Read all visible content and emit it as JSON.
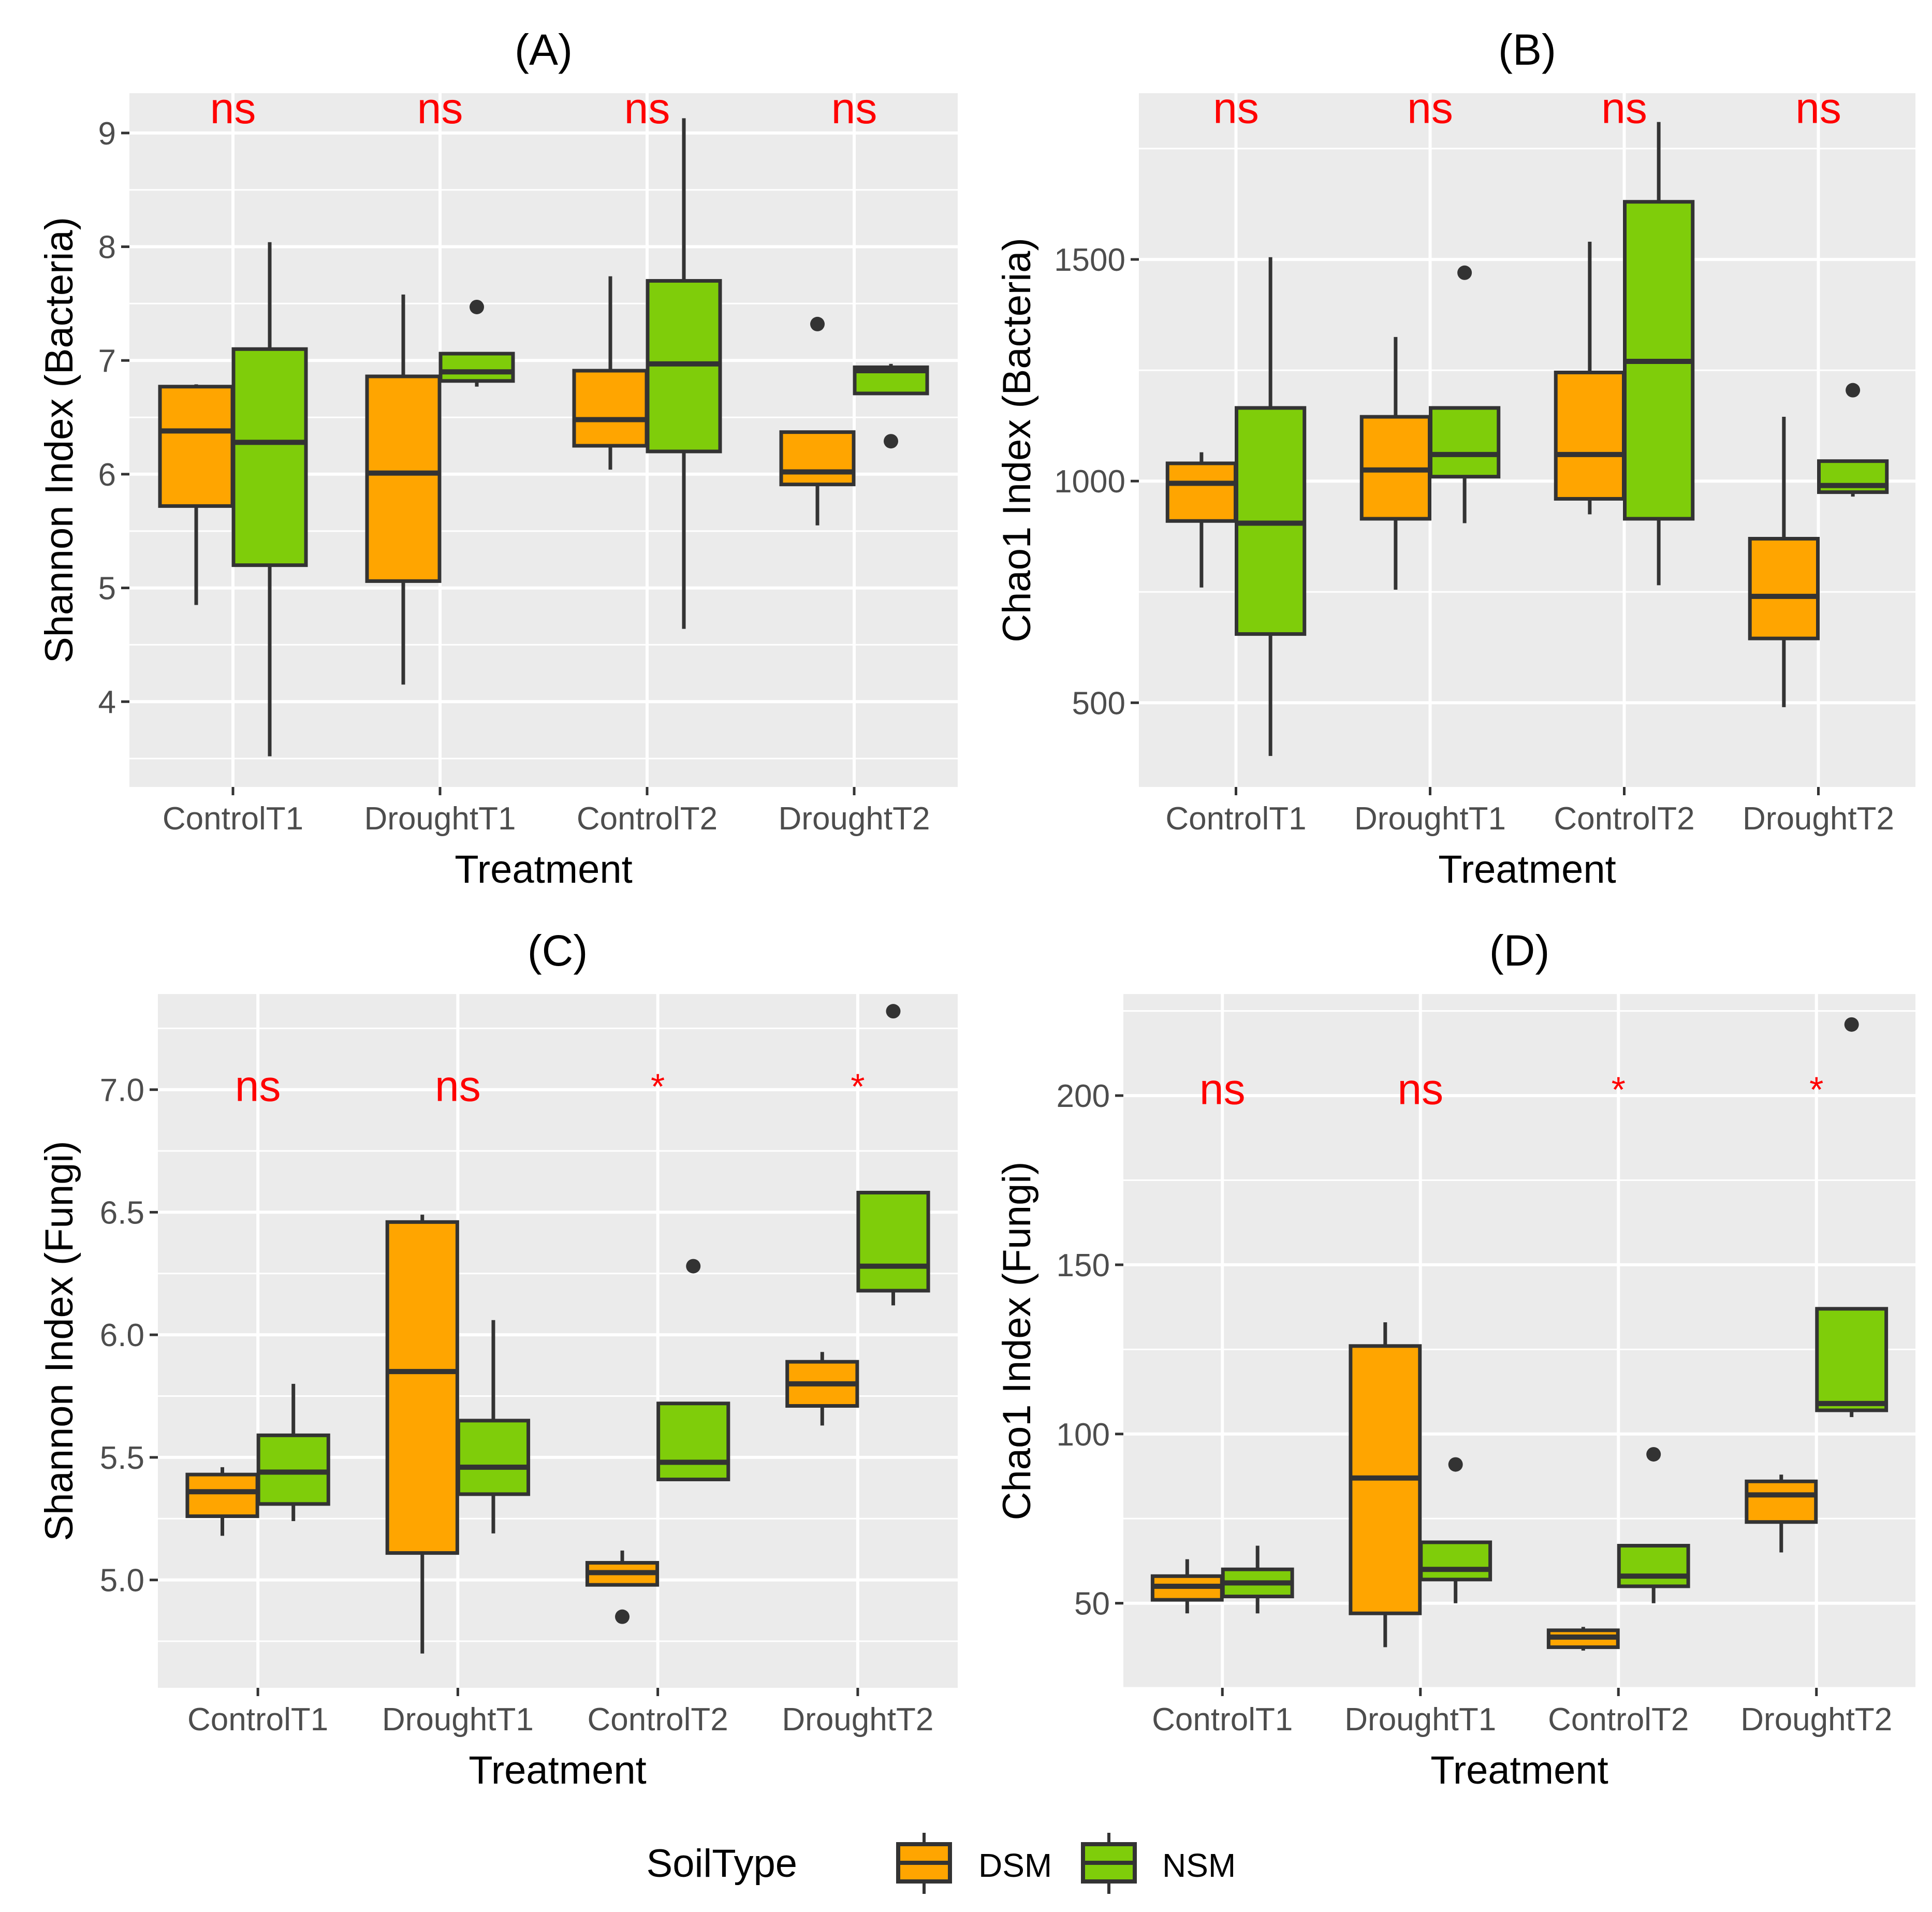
{
  "figure": {
    "legend": {
      "title": "SoilType",
      "entries": [
        {
          "label": "DSM",
          "color": "#FFA500"
        },
        {
          "label": "NSM",
          "color": "#7FCD0A"
        }
      ]
    },
    "style": {
      "panel_bg": "#EBEBEB",
      "grid": "#FFFFFF",
      "box_border": "#333333",
      "sig_color": "#FF0000",
      "axis_text": "#4D4D4D",
      "title_text": "#000000"
    }
  },
  "chart_data": [
    {
      "type": "box",
      "panel": "A",
      "title": "(A)",
      "xlabel": "Treatment",
      "ylabel": "Shannon Index (Bacteria)",
      "categories": [
        "ControlT1",
        "DroughtT1",
        "ControlT2",
        "DroughtT2"
      ],
      "ylim": [
        3.25,
        9.35
      ],
      "yticks": [
        4,
        5,
        6,
        7,
        8,
        9
      ],
      "ytick_labels": [
        "4",
        "5",
        "6",
        "7",
        "8",
        "9"
      ],
      "significance": [
        "ns",
        "ns",
        "ns",
        "ns"
      ],
      "sig_y": 9.25,
      "series": [
        {
          "name": "DSM",
          "boxes": [
            {
              "min": 4.85,
              "q1": 5.72,
              "median": 6.38,
              "q3": 6.77,
              "max": 6.79,
              "outliers": []
            },
            {
              "min": 4.15,
              "q1": 5.06,
              "median": 6.01,
              "q3": 6.86,
              "max": 7.58,
              "outliers": []
            },
            {
              "min": 6.04,
              "q1": 6.25,
              "median": 6.48,
              "q3": 6.91,
              "max": 7.74,
              "outliers": []
            },
            {
              "min": 5.55,
              "q1": 5.91,
              "median": 6.02,
              "q3": 6.37,
              "max": 6.37,
              "outliers": [
                7.32
              ]
            }
          ]
        },
        {
          "name": "NSM",
          "boxes": [
            {
              "min": 3.52,
              "q1": 5.2,
              "median": 6.28,
              "q3": 7.1,
              "max": 8.04,
              "outliers": []
            },
            {
              "min": 6.77,
              "q1": 6.82,
              "median": 6.9,
              "q3": 7.06,
              "max": 7.06,
              "outliers": [
                7.47
              ]
            },
            {
              "min": 4.64,
              "q1": 6.2,
              "median": 6.97,
              "q3": 7.7,
              "max": 9.13,
              "outliers": []
            },
            {
              "min": 6.71,
              "q1": 6.71,
              "median": 6.91,
              "q3": 6.94,
              "max": 6.97,
              "outliers": [
                6.29
              ]
            }
          ]
        }
      ]
    },
    {
      "type": "box",
      "panel": "B",
      "title": "(B)",
      "xlabel": "Treatment",
      "ylabel": "Chao1 Index (Bacteria)",
      "categories": [
        "ControlT1",
        "DroughtT1",
        "ControlT2",
        "DroughtT2"
      ],
      "ylim": [
        310,
        1875
      ],
      "yticks": [
        500,
        1000,
        1500
      ],
      "ytick_labels": [
        "500",
        "1000",
        "1500"
      ],
      "significance": [
        "ns",
        "ns",
        "ns",
        "ns"
      ],
      "sig_y": 1850,
      "series": [
        {
          "name": "DSM",
          "boxes": [
            {
              "min": 760,
              "q1": 910,
              "median": 995,
              "q3": 1040,
              "max": 1065,
              "outliers": []
            },
            {
              "min": 755,
              "q1": 915,
              "median": 1025,
              "q3": 1145,
              "max": 1325,
              "outliers": []
            },
            {
              "min": 925,
              "q1": 960,
              "median": 1060,
              "q3": 1245,
              "max": 1540,
              "outliers": []
            },
            {
              "min": 490,
              "q1": 645,
              "median": 740,
              "q3": 870,
              "max": 1145,
              "outliers": []
            }
          ]
        },
        {
          "name": "NSM",
          "boxes": [
            {
              "min": 380,
              "q1": 655,
              "median": 905,
              "q3": 1165,
              "max": 1505,
              "outliers": []
            },
            {
              "min": 905,
              "q1": 1010,
              "median": 1060,
              "q3": 1165,
              "max": 1165,
              "outliers": [
                1470
              ]
            },
            {
              "min": 765,
              "q1": 915,
              "median": 1270,
              "q3": 1630,
              "max": 1810,
              "outliers": []
            },
            {
              "min": 965,
              "q1": 975,
              "median": 990,
              "q3": 1045,
              "max": 1045,
              "outliers": [
                1205
              ]
            }
          ]
        }
      ]
    },
    {
      "type": "box",
      "panel": "C",
      "title": "(C)",
      "xlabel": "Treatment",
      "ylabel": "Shannon Index (Fungi)",
      "categories": [
        "ControlT1",
        "DroughtT1",
        "ControlT2",
        "DroughtT2"
      ],
      "ylim": [
        4.56,
        7.39
      ],
      "yticks": [
        5.0,
        5.5,
        6.0,
        6.5,
        7.0
      ],
      "ytick_labels": [
        "5.0",
        "5.5",
        "6.0",
        "6.5",
        "7.0"
      ],
      "significance": [
        "ns",
        "ns",
        "*",
        "*"
      ],
      "sig_y": 7.03,
      "series": [
        {
          "name": "DSM",
          "boxes": [
            {
              "min": 5.18,
              "q1": 5.26,
              "median": 5.36,
              "q3": 5.43,
              "max": 5.46,
              "outliers": []
            },
            {
              "min": 4.7,
              "q1": 5.11,
              "median": 5.85,
              "q3": 6.46,
              "max": 6.49,
              "outliers": []
            },
            {
              "min": 4.98,
              "q1": 4.98,
              "median": 5.03,
              "q3": 5.07,
              "max": 5.12,
              "outliers": [
                4.85
              ]
            },
            {
              "min": 5.63,
              "q1": 5.71,
              "median": 5.8,
              "q3": 5.89,
              "max": 5.93,
              "outliers": []
            }
          ]
        },
        {
          "name": "NSM",
          "boxes": [
            {
              "min": 5.24,
              "q1": 5.31,
              "median": 5.44,
              "q3": 5.59,
              "max": 5.8,
              "outliers": []
            },
            {
              "min": 5.19,
              "q1": 5.35,
              "median": 5.46,
              "q3": 5.65,
              "max": 6.06,
              "outliers": []
            },
            {
              "min": 5.41,
              "q1": 5.41,
              "median": 5.48,
              "q3": 5.72,
              "max": 5.72,
              "outliers": [
                6.28
              ]
            },
            {
              "min": 6.12,
              "q1": 6.18,
              "median": 6.28,
              "q3": 6.58,
              "max": 6.58,
              "outliers": [
                7.32
              ]
            }
          ]
        }
      ]
    },
    {
      "type": "box",
      "panel": "D",
      "title": "(D)",
      "xlabel": "Treatment",
      "ylabel": "Chao1 Index (Fungi)",
      "categories": [
        "ControlT1",
        "DroughtT1",
        "ControlT2",
        "DroughtT2"
      ],
      "ylim": [
        25,
        230
      ],
      "yticks": [
        50,
        100,
        150,
        200
      ],
      "ytick_labels": [
        "50",
        "100",
        "150",
        "200"
      ],
      "significance": [
        "ns",
        "ns",
        "*",
        "*"
      ],
      "sig_y": 203,
      "series": [
        {
          "name": "DSM",
          "boxes": [
            {
              "min": 47,
              "q1": 51,
              "median": 55,
              "q3": 58,
              "max": 63,
              "outliers": []
            },
            {
              "min": 37,
              "q1": 47,
              "median": 87,
              "q3": 126,
              "max": 133,
              "outliers": []
            },
            {
              "min": 36,
              "q1": 37,
              "median": 40,
              "q3": 42,
              "max": 43,
              "outliers": []
            },
            {
              "min": 65,
              "q1": 74,
              "median": 82,
              "q3": 86,
              "max": 88,
              "outliers": []
            }
          ]
        },
        {
          "name": "NSM",
          "boxes": [
            {
              "min": 47,
              "q1": 52,
              "median": 56,
              "q3": 60,
              "max": 67,
              "outliers": []
            },
            {
              "min": 50,
              "q1": 57,
              "median": 60,
              "q3": 68,
              "max": 68,
              "outliers": [
                91
              ]
            },
            {
              "min": 50,
              "q1": 55,
              "median": 58,
              "q3": 67,
              "max": 67,
              "outliers": [
                94
              ]
            },
            {
              "min": 105,
              "q1": 107,
              "median": 109,
              "q3": 137,
              "max": 137,
              "outliers": [
                221
              ]
            }
          ]
        }
      ]
    }
  ]
}
